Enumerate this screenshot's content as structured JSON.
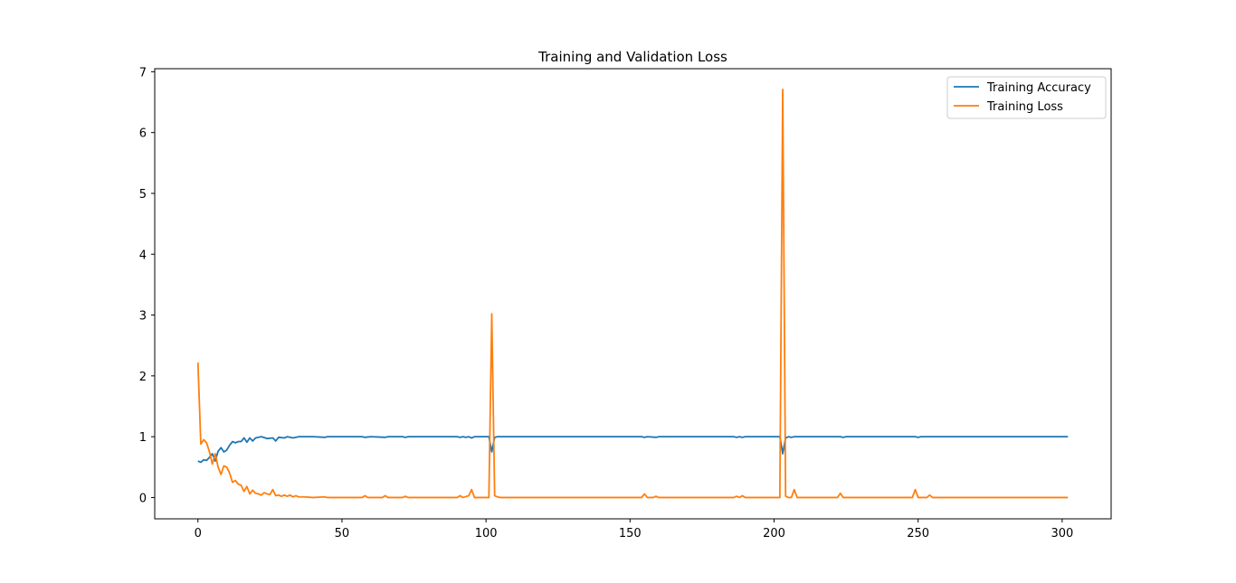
{
  "chart_data": {
    "type": "line",
    "title": "Training and Validation Loss",
    "xlabel": "",
    "ylabel": "",
    "xlim": [
      -15,
      317
    ],
    "ylim": [
      -0.35,
      7.05
    ],
    "xticks": [
      0,
      50,
      100,
      150,
      200,
      250,
      300
    ],
    "yticks": [
      0,
      1,
      2,
      3,
      4,
      5,
      6,
      7
    ],
    "grid": false,
    "legend_position": "top-right",
    "series": [
      {
        "name": "Training Accuracy",
        "color": "#1f77b4",
        "points": [
          [
            0,
            0.6
          ],
          [
            1,
            0.58
          ],
          [
            2,
            0.62
          ],
          [
            3,
            0.61
          ],
          [
            4,
            0.66
          ],
          [
            5,
            0.72
          ],
          [
            6,
            0.6
          ],
          [
            7,
            0.76
          ],
          [
            8,
            0.82
          ],
          [
            9,
            0.75
          ],
          [
            10,
            0.78
          ],
          [
            11,
            0.86
          ],
          [
            12,
            0.92
          ],
          [
            13,
            0.9
          ],
          [
            14,
            0.92
          ],
          [
            15,
            0.92
          ],
          [
            16,
            0.98
          ],
          [
            17,
            0.91
          ],
          [
            18,
            0.98
          ],
          [
            19,
            0.93
          ],
          [
            20,
            0.98
          ],
          [
            22,
            1.0
          ],
          [
            24,
            0.97
          ],
          [
            26,
            0.98
          ],
          [
            27,
            0.93
          ],
          [
            28,
            0.99
          ],
          [
            30,
            0.98
          ],
          [
            31,
            1.0
          ],
          [
            33,
            0.98
          ],
          [
            35,
            1.0
          ],
          [
            40,
            1.0
          ],
          [
            44,
            0.99
          ],
          [
            45,
            1.0
          ],
          [
            57,
            1.0
          ],
          [
            58,
            0.99
          ],
          [
            60,
            1.0
          ],
          [
            65,
            0.99
          ],
          [
            66,
            1.0
          ],
          [
            71,
            1.0
          ],
          [
            72,
            0.99
          ],
          [
            73,
            1.0
          ],
          [
            90,
            1.0
          ],
          [
            91,
            0.99
          ],
          [
            92,
            1.0
          ],
          [
            93,
            0.99
          ],
          [
            94,
            1.0
          ],
          [
            95,
            0.98
          ],
          [
            96,
            1.0
          ],
          [
            101,
            1.0
          ],
          [
            102,
            0.75
          ],
          [
            103,
            0.99
          ],
          [
            104,
            1.0
          ],
          [
            154,
            1.0
          ],
          [
            155,
            0.99
          ],
          [
            156,
            1.0
          ],
          [
            159,
            0.99
          ],
          [
            160,
            1.0
          ],
          [
            186,
            1.0
          ],
          [
            187,
            0.99
          ],
          [
            188,
            1.0
          ],
          [
            189,
            0.99
          ],
          [
            190,
            1.0
          ],
          [
            202,
            1.0
          ],
          [
            203,
            0.72
          ],
          [
            204,
            0.98
          ],
          [
            205,
            1.0
          ],
          [
            206,
            0.99
          ],
          [
            207,
            1.0
          ],
          [
            223,
            1.0
          ],
          [
            224,
            0.99
          ],
          [
            225,
            1.0
          ],
          [
            249,
            1.0
          ],
          [
            250,
            0.99
          ],
          [
            251,
            1.0
          ],
          [
            302,
            1.0
          ]
        ]
      },
      {
        "name": "Training Loss",
        "color": "#ff7f0e",
        "points": [
          [
            0,
            2.22
          ],
          [
            1,
            0.88
          ],
          [
            2,
            0.95
          ],
          [
            3,
            0.9
          ],
          [
            4,
            0.75
          ],
          [
            5,
            0.55
          ],
          [
            6,
            0.72
          ],
          [
            7,
            0.5
          ],
          [
            8,
            0.38
          ],
          [
            9,
            0.52
          ],
          [
            10,
            0.5
          ],
          [
            11,
            0.4
          ],
          [
            12,
            0.25
          ],
          [
            13,
            0.28
          ],
          [
            14,
            0.22
          ],
          [
            15,
            0.2
          ],
          [
            16,
            0.1
          ],
          [
            17,
            0.18
          ],
          [
            18,
            0.06
          ],
          [
            19,
            0.12
          ],
          [
            20,
            0.07
          ],
          [
            21,
            0.06
          ],
          [
            22,
            0.04
          ],
          [
            23,
            0.08
          ],
          [
            24,
            0.06
          ],
          [
            25,
            0.05
          ],
          [
            26,
            0.13
          ],
          [
            27,
            0.03
          ],
          [
            28,
            0.04
          ],
          [
            29,
            0.02
          ],
          [
            30,
            0.04
          ],
          [
            31,
            0.02
          ],
          [
            32,
            0.04
          ],
          [
            33,
            0.01
          ],
          [
            34,
            0.03
          ],
          [
            35,
            0.01
          ],
          [
            37,
            0.01
          ],
          [
            40,
            0.0
          ],
          [
            44,
            0.01
          ],
          [
            45,
            0.0
          ],
          [
            57,
            0.0
          ],
          [
            58,
            0.03
          ],
          [
            59,
            0.0
          ],
          [
            64,
            0.0
          ],
          [
            65,
            0.03
          ],
          [
            66,
            0.0
          ],
          [
            71,
            0.0
          ],
          [
            72,
            0.02
          ],
          [
            73,
            0.0
          ],
          [
            90,
            0.0
          ],
          [
            91,
            0.03
          ],
          [
            92,
            0.0
          ],
          [
            94,
            0.03
          ],
          [
            95,
            0.13
          ],
          [
            96,
            0.0
          ],
          [
            101,
            0.0
          ],
          [
            102,
            3.02
          ],
          [
            103,
            0.03
          ],
          [
            104,
            0.01
          ],
          [
            105,
            0.0
          ],
          [
            154,
            0.0
          ],
          [
            155,
            0.06
          ],
          [
            156,
            0.0
          ],
          [
            158,
            0.0
          ],
          [
            159,
            0.02
          ],
          [
            160,
            0.0
          ],
          [
            186,
            0.0
          ],
          [
            187,
            0.02
          ],
          [
            188,
            0.0
          ],
          [
            189,
            0.03
          ],
          [
            190,
            0.0
          ],
          [
            202,
            0.0
          ],
          [
            203,
            6.71
          ],
          [
            204,
            0.02
          ],
          [
            205,
            0.0
          ],
          [
            206,
            0.0
          ],
          [
            207,
            0.13
          ],
          [
            208,
            0.0
          ],
          [
            222,
            0.0
          ],
          [
            223,
            0.07
          ],
          [
            224,
            0.0
          ],
          [
            248,
            0.0
          ],
          [
            249,
            0.13
          ],
          [
            250,
            0.0
          ],
          [
            253,
            0.0
          ],
          [
            254,
            0.04
          ],
          [
            255,
            0.0
          ],
          [
            302,
            0.0
          ]
        ]
      }
    ]
  }
}
